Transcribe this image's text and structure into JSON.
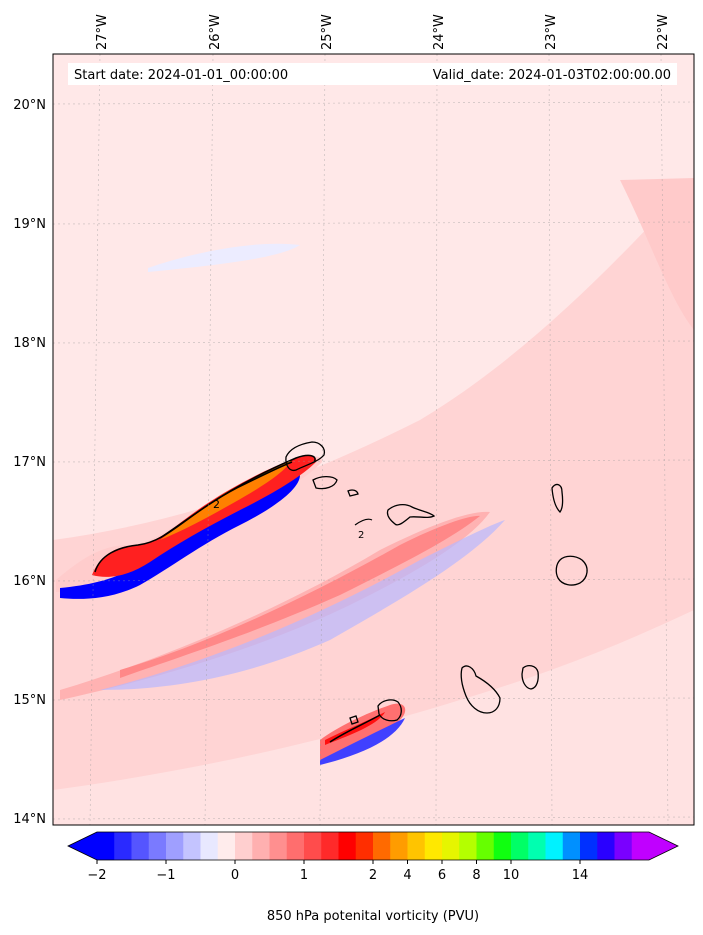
{
  "header": {
    "start_date": "Start date: 2024-01-01_00:00:00",
    "valid_date": "Valid_date: 2024-01-03T02:00:00.00"
  },
  "map": {
    "lon_labels": [
      "27°W",
      "26°W",
      "25°W",
      "24°W",
      "23°W",
      "22°W"
    ],
    "lat_labels": [
      "20°N",
      "19°N",
      "18°N",
      "17°N",
      "16°N",
      "15°N",
      "14°N"
    ],
    "contour_labels": [
      "2",
      "2"
    ]
  },
  "colorbar": {
    "label": "850 hPa potenital vorticity (PVU)",
    "ticks": [
      "−2",
      "−1",
      "0",
      "1",
      "2",
      "4",
      "6",
      "8",
      "10",
      "14"
    ],
    "colors": [
      "#0000ff",
      "#2a2aff",
      "#5555ff",
      "#7a7aff",
      "#9f9fff",
      "#c4c4ff",
      "#e8e8ff",
      "#ffecec",
      "#ffcfcf",
      "#ffb0b0",
      "#ff8f8f",
      "#ff6e6e",
      "#ff4c4c",
      "#ff2a2a",
      "#ff0000",
      "#ff2e00",
      "#ff6a00",
      "#ff9c00",
      "#ffc400",
      "#ffe800",
      "#e6f500",
      "#b4ff00",
      "#66ff00",
      "#10ff10",
      "#00ff66",
      "#00ffb0",
      "#00f2ff",
      "#0090ff",
      "#0030ff",
      "#2a00ff",
      "#7a00ff",
      "#c000ff"
    ]
  }
}
